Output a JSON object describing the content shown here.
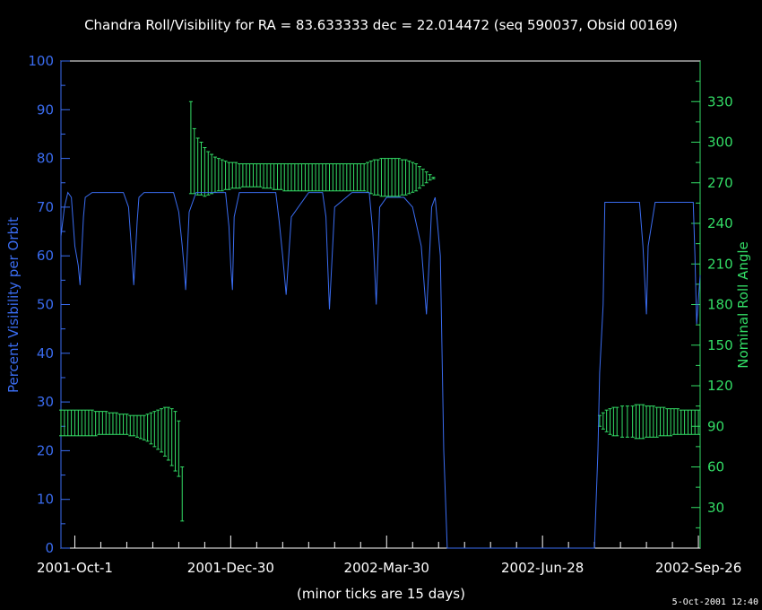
{
  "chart_data": {
    "type": "line",
    "title": "Chandra Roll/Visibility for RA = 83.633333 dec = 22.014472 (seq 590037, Obsid 00169)",
    "xlabel": "(minor ticks are 15 days)",
    "ylabel_left": "Percent Visibility per Orbit",
    "ylabel_right": "Nominal Roll Angle",
    "timestamp": "5-Oct-2001 12:40",
    "x_start_date": "2001-10-01",
    "xlim_days": [
      -8,
      361
    ],
    "ylim_left": [
      0,
      100
    ],
    "ylim_right": [
      0,
      360
    ],
    "xticks": [
      {
        "day": 0,
        "label": "2001-Oct-1"
      },
      {
        "day": 90,
        "label": "2001-Dec-30"
      },
      {
        "day": 180,
        "label": "2002-Mar-30"
      },
      {
        "day": 270,
        "label": "2002-Jun-28"
      },
      {
        "day": 360,
        "label": "2002-Sep-26"
      }
    ],
    "yticks_left": [
      0,
      10,
      20,
      30,
      40,
      50,
      60,
      70,
      80,
      90,
      100
    ],
    "yticks_right": [
      30,
      60,
      90,
      120,
      150,
      180,
      210,
      240,
      270,
      300,
      330
    ],
    "colors": {
      "visibility": "#3a6cf0",
      "roll": "#33dd66",
      "axes": "#ffffff"
    },
    "series": [
      {
        "name": "Visibility",
        "axis": "left",
        "x": [
          -8,
          -6,
          -4,
          -2,
          0,
          2,
          3,
          5,
          6,
          10,
          20,
          28,
          31,
          33,
          34,
          36,
          37,
          40,
          50,
          57,
          60,
          62,
          63,
          64,
          66,
          70,
          80,
          87,
          89,
          90,
          91,
          92,
          95,
          110,
          116,
          118,
          120,
          122,
          125,
          135,
          143,
          145,
          146,
          147,
          150,
          160,
          170,
          172,
          173,
          174,
          176,
          180,
          185,
          190,
          195,
          200,
          203,
          205,
          206,
          208,
          211,
          213,
          215,
          220,
          240,
          280,
          300,
          302,
          303,
          305,
          306,
          310,
          315,
          320,
          326,
          328,
          329,
          330,
          331,
          335,
          340,
          350,
          357,
          358,
          359,
          361
        ],
        "y": [
          64,
          70,
          73,
          72,
          62,
          58,
          54,
          68,
          72,
          73,
          73,
          73,
          70,
          60,
          54,
          67,
          72,
          73,
          73,
          73,
          69,
          62,
          58,
          53,
          69,
          73,
          73,
          73,
          66,
          58,
          53,
          68,
          73,
          73,
          73,
          67,
          60,
          52,
          68,
          73,
          73,
          68,
          58,
          49,
          70,
          73,
          73,
          65,
          58,
          50,
          70,
          72,
          72,
          72,
          70,
          62,
          48,
          62,
          70,
          72,
          60,
          20,
          0,
          0,
          0,
          0,
          0,
          20,
          36,
          50,
          71,
          71,
          71,
          71,
          71,
          62,
          55,
          48,
          62,
          71,
          71,
          71,
          71,
          60,
          46,
          56
        ]
      },
      {
        "name": "Roll",
        "axis": "right",
        "error_bars": [
          {
            "x": -8,
            "lo": 83,
            "hi": 102
          },
          {
            "x": -6,
            "lo": 83,
            "hi": 102
          },
          {
            "x": -4,
            "lo": 83,
            "hi": 102
          },
          {
            "x": -2,
            "lo": 83,
            "hi": 102
          },
          {
            "x": 0,
            "lo": 83,
            "hi": 102
          },
          {
            "x": 2,
            "lo": 83,
            "hi": 102
          },
          {
            "x": 4,
            "lo": 83,
            "hi": 102
          },
          {
            "x": 6,
            "lo": 83,
            "hi": 102
          },
          {
            "x": 8,
            "lo": 83,
            "hi": 102
          },
          {
            "x": 10,
            "lo": 83,
            "hi": 102
          },
          {
            "x": 12,
            "lo": 83,
            "hi": 101
          },
          {
            "x": 14,
            "lo": 84,
            "hi": 101
          },
          {
            "x": 16,
            "lo": 84,
            "hi": 101
          },
          {
            "x": 18,
            "lo": 84,
            "hi": 101
          },
          {
            "x": 20,
            "lo": 84,
            "hi": 100
          },
          {
            "x": 22,
            "lo": 84,
            "hi": 100
          },
          {
            "x": 24,
            "lo": 84,
            "hi": 100
          },
          {
            "x": 26,
            "lo": 84,
            "hi": 99
          },
          {
            "x": 28,
            "lo": 84,
            "hi": 99
          },
          {
            "x": 30,
            "lo": 84,
            "hi": 99
          },
          {
            "x": 32,
            "lo": 83,
            "hi": 98
          },
          {
            "x": 34,
            "lo": 83,
            "hi": 98
          },
          {
            "x": 36,
            "lo": 82,
            "hi": 98
          },
          {
            "x": 38,
            "lo": 81,
            "hi": 98
          },
          {
            "x": 40,
            "lo": 80,
            "hi": 98
          },
          {
            "x": 42,
            "lo": 79,
            "hi": 99
          },
          {
            "x": 44,
            "lo": 77,
            "hi": 100
          },
          {
            "x": 46,
            "lo": 75,
            "hi": 101
          },
          {
            "x": 48,
            "lo": 73,
            "hi": 102
          },
          {
            "x": 50,
            "lo": 71,
            "hi": 103
          },
          {
            "x": 52,
            "lo": 68,
            "hi": 104
          },
          {
            "x": 54,
            "lo": 65,
            "hi": 104
          },
          {
            "x": 56,
            "lo": 61,
            "hi": 103
          },
          {
            "x": 58,
            "lo": 57,
            "hi": 101
          },
          {
            "x": 60,
            "lo": 53,
            "hi": 94
          },
          {
            "x": 62,
            "lo": 20,
            "hi": 60
          },
          {
            "x": 67,
            "lo": 262,
            "hi": 330
          },
          {
            "x": 69,
            "lo": 262,
            "hi": 310
          },
          {
            "x": 71,
            "lo": 261,
            "hi": 303
          },
          {
            "x": 73,
            "lo": 261,
            "hi": 300
          },
          {
            "x": 75,
            "lo": 260,
            "hi": 296
          },
          {
            "x": 77,
            "lo": 261,
            "hi": 293
          },
          {
            "x": 79,
            "lo": 262,
            "hi": 291
          },
          {
            "x": 81,
            "lo": 263,
            "hi": 289
          },
          {
            "x": 83,
            "lo": 264,
            "hi": 288
          },
          {
            "x": 85,
            "lo": 264,
            "hi": 287
          },
          {
            "x": 87,
            "lo": 265,
            "hi": 286
          },
          {
            "x": 89,
            "lo": 265,
            "hi": 285
          },
          {
            "x": 91,
            "lo": 266,
            "hi": 285
          },
          {
            "x": 93,
            "lo": 266,
            "hi": 285
          },
          {
            "x": 95,
            "lo": 266,
            "hi": 284
          },
          {
            "x": 97,
            "lo": 267,
            "hi": 284
          },
          {
            "x": 99,
            "lo": 267,
            "hi": 284
          },
          {
            "x": 101,
            "lo": 267,
            "hi": 284
          },
          {
            "x": 103,
            "lo": 267,
            "hi": 284
          },
          {
            "x": 105,
            "lo": 267,
            "hi": 284
          },
          {
            "x": 107,
            "lo": 267,
            "hi": 284
          },
          {
            "x": 109,
            "lo": 266,
            "hi": 284
          },
          {
            "x": 111,
            "lo": 266,
            "hi": 284
          },
          {
            "x": 113,
            "lo": 266,
            "hi": 284
          },
          {
            "x": 115,
            "lo": 265,
            "hi": 284
          },
          {
            "x": 117,
            "lo": 265,
            "hi": 284
          },
          {
            "x": 119,
            "lo": 265,
            "hi": 284
          },
          {
            "x": 121,
            "lo": 264,
            "hi": 284
          },
          {
            "x": 123,
            "lo": 264,
            "hi": 284
          },
          {
            "x": 125,
            "lo": 264,
            "hi": 284
          },
          {
            "x": 127,
            "lo": 264,
            "hi": 284
          },
          {
            "x": 129,
            "lo": 264,
            "hi": 284
          },
          {
            "x": 131,
            "lo": 264,
            "hi": 284
          },
          {
            "x": 133,
            "lo": 264,
            "hi": 284
          },
          {
            "x": 135,
            "lo": 264,
            "hi": 284
          },
          {
            "x": 137,
            "lo": 264,
            "hi": 284
          },
          {
            "x": 139,
            "lo": 264,
            "hi": 284
          },
          {
            "x": 141,
            "lo": 264,
            "hi": 284
          },
          {
            "x": 143,
            "lo": 264,
            "hi": 284
          },
          {
            "x": 145,
            "lo": 264,
            "hi": 284
          },
          {
            "x": 147,
            "lo": 264,
            "hi": 284
          },
          {
            "x": 149,
            "lo": 264,
            "hi": 284
          },
          {
            "x": 151,
            "lo": 264,
            "hi": 284
          },
          {
            "x": 153,
            "lo": 264,
            "hi": 284
          },
          {
            "x": 155,
            "lo": 264,
            "hi": 284
          },
          {
            "x": 157,
            "lo": 264,
            "hi": 284
          },
          {
            "x": 159,
            "lo": 264,
            "hi": 284
          },
          {
            "x": 161,
            "lo": 264,
            "hi": 284
          },
          {
            "x": 163,
            "lo": 264,
            "hi": 284
          },
          {
            "x": 165,
            "lo": 264,
            "hi": 284
          },
          {
            "x": 167,
            "lo": 264,
            "hi": 284
          },
          {
            "x": 169,
            "lo": 263,
            "hi": 285
          },
          {
            "x": 171,
            "lo": 262,
            "hi": 286
          },
          {
            "x": 173,
            "lo": 261,
            "hi": 287
          },
          {
            "x": 175,
            "lo": 261,
            "hi": 287
          },
          {
            "x": 177,
            "lo": 260,
            "hi": 288
          },
          {
            "x": 179,
            "lo": 260,
            "hi": 288
          },
          {
            "x": 181,
            "lo": 260,
            "hi": 288
          },
          {
            "x": 183,
            "lo": 260,
            "hi": 288
          },
          {
            "x": 185,
            "lo": 260,
            "hi": 288
          },
          {
            "x": 187,
            "lo": 260,
            "hi": 288
          },
          {
            "x": 189,
            "lo": 261,
            "hi": 287
          },
          {
            "x": 191,
            "lo": 261,
            "hi": 287
          },
          {
            "x": 193,
            "lo": 262,
            "hi": 286
          },
          {
            "x": 195,
            "lo": 263,
            "hi": 285
          },
          {
            "x": 197,
            "lo": 264,
            "hi": 284
          },
          {
            "x": 199,
            "lo": 266,
            "hi": 282
          },
          {
            "x": 201,
            "lo": 268,
            "hi": 280
          },
          {
            "x": 203,
            "lo": 270,
            "hi": 278
          },
          {
            "x": 205,
            "lo": 272,
            "hi": 276
          },
          {
            "x": 207,
            "lo": 273,
            "hi": 274
          },
          {
            "x": 303,
            "lo": 90,
            "hi": 98
          },
          {
            "x": 305,
            "lo": 88,
            "hi": 100
          },
          {
            "x": 307,
            "lo": 86,
            "hi": 102
          },
          {
            "x": 309,
            "lo": 84,
            "hi": 103
          },
          {
            "x": 311,
            "lo": 83,
            "hi": 104
          },
          {
            "x": 313,
            "lo": 83,
            "hi": 104
          },
          {
            "x": 316,
            "lo": 82,
            "hi": 105
          },
          {
            "x": 319,
            "lo": 82,
            "hi": 105
          },
          {
            "x": 322,
            "lo": 82,
            "hi": 105
          },
          {
            "x": 324,
            "lo": 81,
            "hi": 106
          },
          {
            "x": 326,
            "lo": 81,
            "hi": 106
          },
          {
            "x": 328,
            "lo": 81,
            "hi": 106
          },
          {
            "x": 330,
            "lo": 82,
            "hi": 105
          },
          {
            "x": 332,
            "lo": 82,
            "hi": 105
          },
          {
            "x": 334,
            "lo": 82,
            "hi": 105
          },
          {
            "x": 336,
            "lo": 82,
            "hi": 104
          },
          {
            "x": 338,
            "lo": 83,
            "hi": 104
          },
          {
            "x": 340,
            "lo": 83,
            "hi": 104
          },
          {
            "x": 342,
            "lo": 83,
            "hi": 103
          },
          {
            "x": 344,
            "lo": 83,
            "hi": 103
          },
          {
            "x": 346,
            "lo": 84,
            "hi": 103
          },
          {
            "x": 348,
            "lo": 84,
            "hi": 103
          },
          {
            "x": 350,
            "lo": 84,
            "hi": 102
          },
          {
            "x": 352,
            "lo": 84,
            "hi": 102
          },
          {
            "x": 354,
            "lo": 84,
            "hi": 102
          },
          {
            "x": 356,
            "lo": 84,
            "hi": 102
          },
          {
            "x": 358,
            "lo": 84,
            "hi": 102
          },
          {
            "x": 360,
            "lo": 84,
            "hi": 102
          }
        ]
      }
    ]
  }
}
